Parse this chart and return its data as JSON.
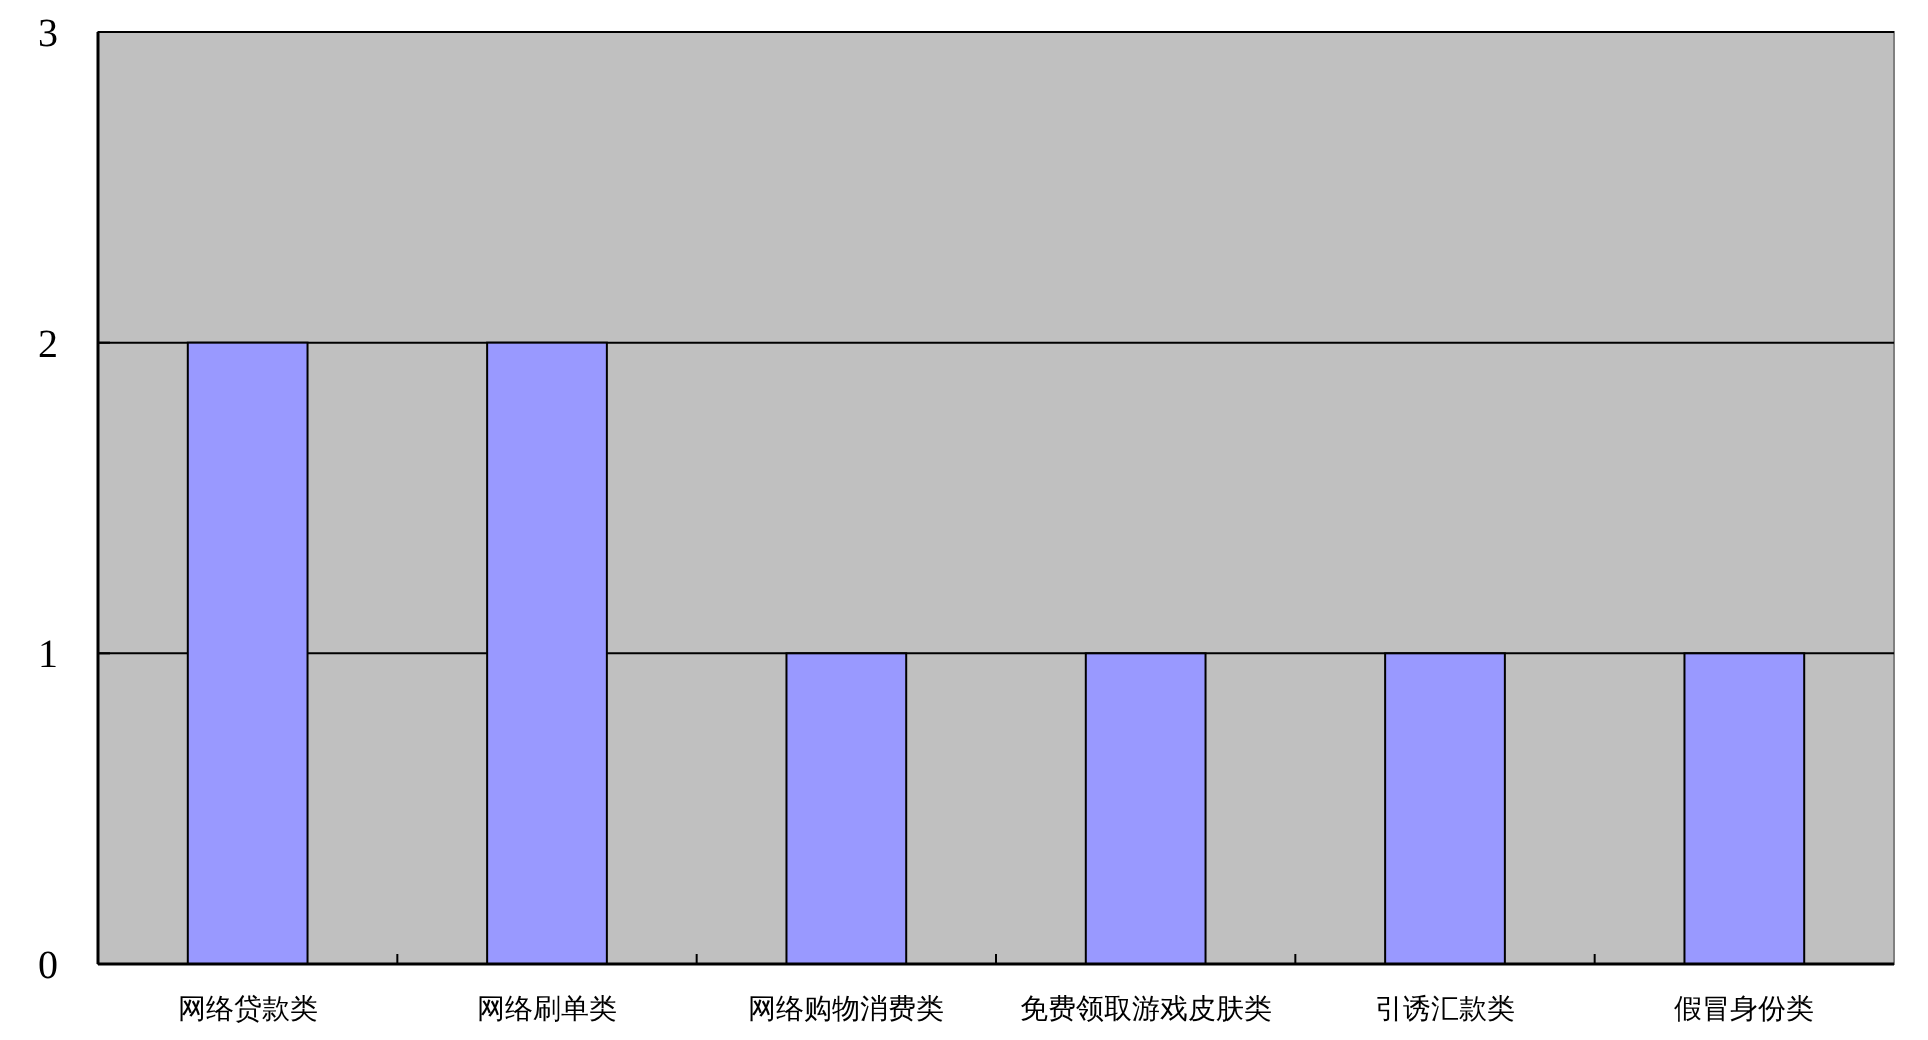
{
  "chart_data": {
    "type": "bar",
    "categories": [
      "网络贷款类",
      "网络刷单类",
      "网络购物消费类",
      "免费领取游戏皮肤类",
      "引诱汇款类",
      "假冒身份类"
    ],
    "values": [
      2,
      2,
      1,
      1,
      1,
      1
    ],
    "color": "#9999ff",
    "ylim": [
      0,
      3
    ],
    "yticks": [
      0,
      1,
      2,
      3
    ],
    "grid": "y"
  }
}
